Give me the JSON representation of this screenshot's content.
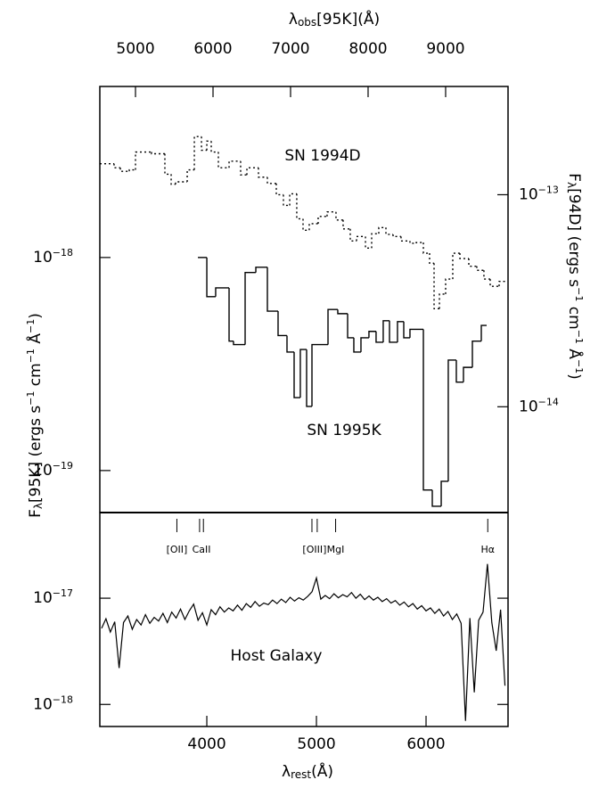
{
  "chart_data": [
    {
      "type": "step",
      "xaxis": "top",
      "xlabel": [
        {
          "text": "λ"
        },
        {
          "text": "obs",
          "shift": "sub"
        },
        {
          "text": "[95K](Å)"
        }
      ],
      "ylabel": [
        {
          "text": "F"
        },
        {
          "text": "λ",
          "shift": "sub"
        },
        {
          "text": "[95K] (ergs s"
        },
        {
          "text": "−1",
          "shift": "super"
        },
        {
          "text": " cm"
        },
        {
          "text": "−1",
          "shift": "super"
        },
        {
          "text": " Å"
        },
        {
          "text": "−1",
          "shift": "super"
        },
        {
          "text": ")"
        }
      ],
      "y2label": [
        {
          "text": "F"
        },
        {
          "text": "λ",
          "shift": "sub"
        },
        {
          "text": "[94D] (ergs s"
        },
        {
          "text": "−1",
          "shift": "super"
        },
        {
          "text": " cm"
        },
        {
          "text": "−1",
          "shift": "super"
        },
        {
          "text": " Å"
        },
        {
          "text": "−1",
          "shift": "super"
        },
        {
          "text": ")"
        }
      ],
      "xlim": [
        4540,
        9805
      ],
      "xticks": [
        5000,
        6000,
        7000,
        8000,
        9000
      ],
      "log_y": true,
      "ylim": [
        6.35e-20,
        6.35e-18
      ],
      "yticks": [
        {
          "value": 1e-19,
          "label": "10",
          "exponent": "−19"
        },
        {
          "value": 1e-18,
          "label": "10",
          "exponent": "−18"
        }
      ],
      "y2lim": [
        3.17e-15,
        3.24e-13
      ],
      "y2ticks": [
        {
          "value": 1e-14,
          "label": "10",
          "exponent": "−14"
        },
        {
          "value": 1e-13,
          "label": "10",
          "exponent": "−13"
        }
      ],
      "series": [
        {
          "name": "SN 1995K",
          "color": "#000000",
          "style": "solid",
          "bins": [
            5805,
            5920,
            6034,
            6207,
            6264,
            6414,
            6552,
            6701,
            6839,
            6954,
            7046,
            7126,
            7207,
            7276,
            7483,
            7609,
            7736,
            7816,
            7908,
            8011,
            8103,
            8195,
            8276,
            8379,
            8460,
            8540,
            8713,
            8828,
            8943,
            9034,
            9138,
            9230,
            9345,
            9460,
            9529
          ],
          "values": [
            1e-18,
            6.55e-19,
            7.2e-19,
            4.05e-19,
            3.9e-19,
            8.5e-19,
            9e-19,
            5.6e-19,
            4.3e-19,
            3.6e-19,
            2.2e-19,
            3.7e-19,
            2e-19,
            3.9e-19,
            5.7e-19,
            5.45e-19,
            4.2e-19,
            3.6e-19,
            4.2e-19,
            4.5e-19,
            4e-19,
            5.05e-19,
            4e-19,
            5e-19,
            4.2e-19,
            4.6e-19,
            8.1e-20,
            6.8e-20,
            8.9e-20,
            3.3e-19,
            2.6e-19,
            3.05e-19,
            4.05e-19,
            4.8e-19
          ]
        },
        {
          "name": "SN 1994D",
          "color": "#000000",
          "style": "dotted",
          "axis": "y2",
          "bins": [
            4540,
            4724,
            4805,
            4920,
            5000,
            5207,
            5379,
            5460,
            5517,
            5667,
            5759,
            5851,
            5920,
            5977,
            6069,
            6207,
            6356,
            6437,
            6586,
            6701,
            6816,
            6908,
            6989,
            7080,
            7161,
            7241,
            7356,
            7471,
            7586,
            7678,
            7770,
            7851,
            7966,
            8046,
            8138,
            8230,
            8322,
            8425,
            8540,
            8621,
            8713,
            8793,
            8851,
            8920,
            9000,
            9092,
            9184,
            9299,
            9402,
            9494,
            9575,
            9690,
            9805
          ],
          "values": [
            1.4e-13,
            1.34e-13,
            1.29e-13,
            1.31e-13,
            1.59e-13,
            1.56e-13,
            1.25e-13,
            1.12e-13,
            1.15e-13,
            1.31e-13,
            1.88e-13,
            1.62e-13,
            1.79e-13,
            1.59e-13,
            1.34e-13,
            1.44e-13,
            1.24e-13,
            1.34e-13,
            1.21e-13,
            1.13e-13,
            1e-13,
            8.9e-14,
            1.01e-13,
            7.7e-14,
            6.8e-14,
            7.3e-14,
            7.9e-14,
            8.3e-14,
            7.6e-14,
            6.9e-14,
            6.05e-14,
            6.35e-14,
            5.6e-14,
            6.55e-14,
            7e-14,
            6.5e-14,
            6.35e-14,
            6.05e-14,
            5.9e-14,
            5.95e-14,
            5.3e-14,
            4.75e-14,
            2.9e-14,
            3.4e-14,
            4e-14,
            5.3e-14,
            5e-14,
            4.6e-14,
            4.4e-14,
            4e-14,
            3.7e-14,
            3.9e-14
          ]
        }
      ]
    },
    {
      "type": "line",
      "xaxis": "bottom",
      "xlabel": [
        {
          "text": "λ"
        },
        {
          "text": "rest",
          "shift": "sub"
        },
        {
          "text": "(Å)"
        }
      ],
      "xlim": [
        3024,
        6748
      ],
      "xticks": [
        4000,
        5000,
        6000
      ],
      "log_y": true,
      "ylim": [
        6.2e-19,
        6.4e-17
      ],
      "yticks": [
        {
          "value": 1e-18,
          "label": "10",
          "exponent": "−18"
        },
        {
          "value": 1e-17,
          "label": "10",
          "exponent": "−17"
        }
      ],
      "line_markers": [
        {
          "label": "[OII]",
          "wavelengths": [
            3727
          ]
        },
        {
          "label": "CaII",
          "wavelengths": [
            3934,
            3969
          ]
        },
        {
          "label": "[OIII]",
          "wavelengths": [
            4959,
            5007
          ]
        },
        {
          "label": "MgI",
          "wavelengths": [
            5175
          ]
        },
        {
          "label": "Hα",
          "wavelengths": [
            6563
          ]
        }
      ],
      "series": [
        {
          "name": "Host Galaxy",
          "color": "#000000",
          "x": [
            3040,
            3080,
            3120,
            3160,
            3200,
            3240,
            3280,
            3320,
            3360,
            3400,
            3440,
            3480,
            3520,
            3560,
            3600,
            3640,
            3680,
            3720,
            3760,
            3800,
            3840,
            3880,
            3920,
            3960,
            4000,
            4040,
            4080,
            4120,
            4160,
            4200,
            4240,
            4280,
            4320,
            4360,
            4400,
            4440,
            4480,
            4520,
            4560,
            4600,
            4640,
            4680,
            4720,
            4760,
            4800,
            4840,
            4880,
            4920,
            4960,
            5000,
            5040,
            5080,
            5120,
            5160,
            5200,
            5240,
            5280,
            5320,
            5360,
            5400,
            5440,
            5480,
            5520,
            5560,
            5600,
            5640,
            5680,
            5720,
            5760,
            5800,
            5840,
            5880,
            5920,
            5960,
            6000,
            6040,
            6080,
            6120,
            6160,
            6200,
            6240,
            6280,
            6320,
            6360,
            6400,
            6440,
            6480,
            6520,
            6560,
            6600,
            6640,
            6680,
            6720
          ],
          "values": [
            5.2e-18,
            6.4e-18,
            4.8e-18,
            6e-18,
            2.2e-18,
            5.9e-18,
            6.8e-18,
            5.1e-18,
            6.3e-18,
            5.6e-18,
            7e-18,
            5.8e-18,
            6.6e-18,
            6.1e-18,
            7.2e-18,
            5.9e-18,
            7.4e-18,
            6.5e-18,
            7.9e-18,
            6.3e-18,
            7.6e-18,
            8.8e-18,
            6.2e-18,
            7.3e-18,
            5.6e-18,
            7.8e-18,
            7e-18,
            8.3e-18,
            7.4e-18,
            8.1e-18,
            7.6e-18,
            8.6e-18,
            7.7e-18,
            8.9e-18,
            8.2e-18,
            9.3e-18,
            8.4e-18,
            9e-18,
            8.7e-18,
            9.6e-18,
            8.9e-18,
            9.8e-18,
            9.1e-18,
            1.02e-17,
            9.4e-18,
            1.01e-17,
            9.6e-18,
            1.04e-17,
            1.15e-17,
            1.55e-17,
            9.8e-18,
            1.06e-17,
            9.9e-18,
            1.1e-17,
            1.01e-17,
            1.08e-17,
            1.03e-17,
            1.13e-17,
            1e-17,
            1.09e-17,
            9.7e-18,
            1.05e-17,
            9.6e-18,
            1.02e-17,
            9.3e-18,
            9.9e-18,
            9e-18,
            9.5e-18,
            8.6e-18,
            9.2e-18,
            8.3e-18,
            8.9e-18,
            7.9e-18,
            8.5e-18,
            7.6e-18,
            8.1e-18,
            7.2e-18,
            7.9e-18,
            6.8e-18,
            7.5e-18,
            6.3e-18,
            7.1e-18,
            5.8e-18,
            7e-19,
            6.5e-18,
            1.3e-18,
            6.2e-18,
            7.4e-18,
            2.1e-17,
            5.9e-18,
            3.2e-18,
            7.8e-18,
            1.5e-18
          ]
        }
      ]
    }
  ]
}
